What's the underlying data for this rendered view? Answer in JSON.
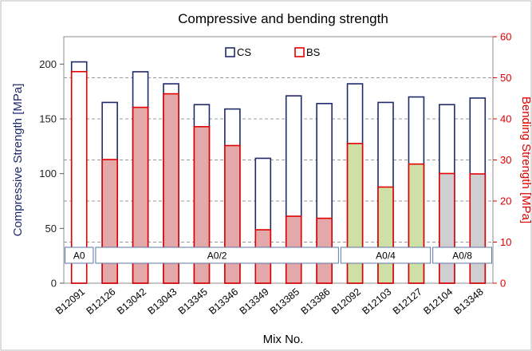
{
  "chart_data": {
    "type": "bar",
    "title": "Compressive and bending strength",
    "xlabel": "Mix No.",
    "ylabel": "Compressive Strength [MPa]",
    "y2label": "Bending Strength [MPa]",
    "ylim": [
      0,
      225
    ],
    "y_ticks": [
      0,
      50,
      100,
      150,
      200
    ],
    "y2lim": [
      0,
      60
    ],
    "y2_ticks": [
      0,
      10,
      20,
      30,
      40,
      50,
      60
    ],
    "grid": true,
    "legend_position": "top-center",
    "categories": [
      "B12091",
      "B12126",
      "B13042",
      "B13043",
      "B13345",
      "B13346",
      "B13349",
      "B13385",
      "B13386",
      "B12092",
      "B12103",
      "B12127",
      "B12104",
      "B13348"
    ],
    "series": [
      {
        "name": "CS",
        "axis": "left",
        "values": [
          202,
          165,
          193,
          182,
          163,
          159,
          114,
          171,
          164,
          182,
          165,
          170,
          163,
          169
        ]
      },
      {
        "name": "BS",
        "axis": "right",
        "values": [
          51.5,
          30.1,
          42.8,
          46.1,
          38.1,
          33.5,
          13.0,
          16.3,
          15.8,
          34.0,
          23.4,
          29.0,
          26.7,
          26.6
        ]
      }
    ],
    "groups": [
      {
        "label": "A0",
        "start": 0,
        "end": 0
      },
      {
        "label": "A0/2",
        "start": 1,
        "end": 8
      },
      {
        "label": "A0/4",
        "start": 9,
        "end": 11
      },
      {
        "label": "A0/8",
        "start": 12,
        "end": 13
      }
    ],
    "colors": {
      "cs_stroke": "#1f2a6b",
      "bs_stroke": "#e00000",
      "fill_a0": "#ffffff",
      "fill_a0_2": "#e2a8aa",
      "fill_a0_4": "#cfe0a6",
      "fill_a0_8": "#cfcfd3",
      "left_axis_text": "#1f2a6b",
      "right_axis_text": "#e00000"
    }
  }
}
